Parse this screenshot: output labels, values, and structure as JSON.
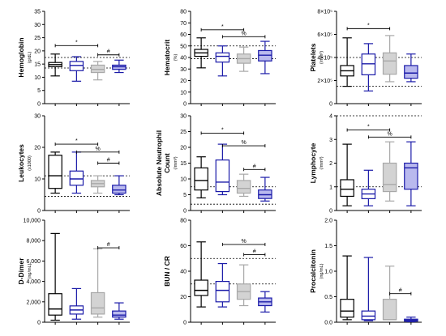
{
  "colors": {
    "black": "#000000",
    "blue": "#1a1aa8",
    "gray": "#a8a8a8",
    "gray_fill": "#d3d3d3",
    "blue_fill": "#b9b9ee",
    "white": "#ffffff"
  },
  "chart_data": [
    {
      "type": "boxplot",
      "ylabel": "Hemoglobin",
      "yunit": "(g/dL)",
      "ylim": [
        0,
        35
      ],
      "yticks": [
        0,
        5,
        10,
        15,
        20,
        25,
        30,
        35
      ],
      "ytick_labels": [
        "0",
        "5",
        "10",
        "15",
        "20",
        "25",
        "30",
        "35"
      ],
      "series": [
        {
          "color": "black",
          "fill": "white",
          "min": 10.5,
          "q1": 14.0,
          "median": 14.8,
          "q3": 15.6,
          "max": 18.8
        },
        {
          "color": "blue",
          "fill": "white",
          "min": 8.5,
          "q1": 12.5,
          "median": 14.5,
          "q3": 16.0,
          "max": 17.8
        },
        {
          "color": "gray",
          "fill": "gray_fill",
          "min": 9.0,
          "q1": 11.8,
          "median": 13.0,
          "q3": 14.6,
          "max": 16.0
        },
        {
          "color": "blue",
          "fill": "blue_fill",
          "min": 11.8,
          "q1": 13.0,
          "median": 14.0,
          "q3": 14.6,
          "max": 16.5
        }
      ],
      "reference_lines": [
        13.5,
        17.5
      ],
      "brackets": [
        {
          "from": 1,
          "to": 3,
          "y": 22.0,
          "label": "*"
        },
        {
          "from": 3,
          "to": 4,
          "y": 18.5,
          "label": "#"
        }
      ]
    },
    {
      "type": "boxplot",
      "ylabel": "Hematocrit",
      "yunit": "(%)",
      "ylim": [
        0,
        80
      ],
      "yticks": [
        0,
        10,
        20,
        30,
        40,
        50,
        60,
        70,
        80
      ],
      "ytick_labels": [
        "0",
        "10",
        "20",
        "30",
        "40",
        "50",
        "60",
        "70",
        "80"
      ],
      "series": [
        {
          "color": "black",
          "fill": "white",
          "min": 31,
          "q1": 41,
          "median": 44,
          "q3": 47,
          "max": 57
        },
        {
          "color": "blue",
          "fill": "white",
          "min": 24,
          "q1": 36,
          "median": 41,
          "q3": 44,
          "max": 50
        },
        {
          "color": "gray",
          "fill": "gray_fill",
          "min": 28,
          "q1": 35,
          "median": 39,
          "q3": 43,
          "max": 49
        },
        {
          "color": "blue",
          "fill": "blue_fill",
          "min": 26,
          "q1": 37,
          "median": 42,
          "q3": 46,
          "max": 54
        }
      ],
      "reference_lines": [
        39,
        50
      ],
      "brackets": [
        {
          "from": 1,
          "to": 3,
          "y": 64,
          "label": "*"
        },
        {
          "from": 2,
          "to": 4,
          "y": 58,
          "label": "%"
        }
      ]
    },
    {
      "type": "boxplot",
      "ylabel": "Platelets",
      "yunit": "(/mm³)",
      "ylim": [
        0,
        800000
      ],
      "yticks": [
        0,
        200000,
        400000,
        600000,
        800000
      ],
      "ytick_labels": [
        "0",
        "2×10⁵",
        "4×10⁵",
        "6×10⁵",
        "8×10⁵"
      ],
      "series": [
        {
          "color": "black",
          "fill": "white",
          "min": 150000,
          "q1": 240000,
          "median": 285000,
          "q3": 330000,
          "max": 570000
        },
        {
          "color": "blue",
          "fill": "white",
          "min": 110000,
          "q1": 250000,
          "median": 345000,
          "q3": 430000,
          "max": 520000
        },
        {
          "color": "gray",
          "fill": "gray_fill",
          "min": 190000,
          "q1": 255000,
          "median": 370000,
          "q3": 440000,
          "max": 590000
        },
        {
          "color": "blue",
          "fill": "blue_fill",
          "min": 190000,
          "q1": 220000,
          "median": 265000,
          "q3": 330000,
          "max": 430000
        }
      ],
      "reference_lines": [
        150000,
        400000
      ],
      "brackets": [
        {
          "from": 1,
          "to": 3,
          "y": 650000,
          "label": "*"
        }
      ]
    },
    {
      "type": "boxplot",
      "ylabel": "Leukocytes",
      "yunit": "(x1000)",
      "ylim": [
        0,
        30
      ],
      "yticks": [
        0,
        10,
        20,
        30
      ],
      "ytick_labels": [
        "0",
        "10",
        "20",
        "30"
      ],
      "series": [
        {
          "color": "black",
          "fill": "white",
          "min": 5.5,
          "q1": 7.0,
          "median": 11.0,
          "q3": 17.5,
          "max": 18.5
        },
        {
          "color": "blue",
          "fill": "white",
          "min": 5.5,
          "q1": 8.0,
          "median": 10.0,
          "q3": 12.5,
          "max": 18.5
        },
        {
          "color": "gray",
          "fill": "gray_fill",
          "min": 5.5,
          "q1": 7.5,
          "median": 8.5,
          "q3": 9.5,
          "max": 11.0
        },
        {
          "color": "blue",
          "fill": "blue_fill",
          "min": 5.0,
          "q1": 5.5,
          "median": 6.5,
          "q3": 8.0,
          "max": 11.0
        }
      ],
      "reference_lines": [
        4.5,
        11.0
      ],
      "brackets": [
        {
          "from": 1,
          "to": 3,
          "y": 21.0,
          "label": "*"
        },
        {
          "from": 2,
          "to": 4,
          "y": 18.5,
          "label": "%"
        },
        {
          "from": 3,
          "to": 4,
          "y": 15.0,
          "label": "#"
        }
      ]
    },
    {
      "type": "boxplot",
      "ylabel": "Absolute Neutrophil Count",
      "yunit": "(/mm³)",
      "ylim": [
        0,
        30
      ],
      "yticks": [
        0,
        5,
        10,
        15,
        20,
        25,
        30
      ],
      "ytick_labels": [
        "0",
        "5",
        "10",
        "15",
        "20",
        "25",
        "30"
      ],
      "series": [
        {
          "color": "black",
          "fill": "white",
          "min": 4.0,
          "q1": 6.5,
          "median": 9.5,
          "q3": 13.5,
          "max": 17.0
        },
        {
          "color": "blue",
          "fill": "white",
          "min": 5.0,
          "q1": 6.0,
          "median": 9.0,
          "q3": 16.0,
          "max": 21.0
        },
        {
          "color": "gray",
          "fill": "gray_fill",
          "min": 4.5,
          "q1": 5.5,
          "median": 7.0,
          "q3": 9.5,
          "max": 11.5
        },
        {
          "color": "blue",
          "fill": "blue_fill",
          "min": 3.0,
          "q1": 3.8,
          "median": 5.0,
          "q3": 6.5,
          "max": 10.5
        }
      ],
      "reference_lines": [
        2.0,
        7.5
      ],
      "brackets": [
        {
          "from": 1,
          "to": 3,
          "y": 24.5,
          "label": "*"
        },
        {
          "from": 2,
          "to": 4,
          "y": 20.5,
          "label": "%"
        },
        {
          "from": 3,
          "to": 4,
          "y": 13.0,
          "label": "#"
        }
      ]
    },
    {
      "type": "boxplot",
      "ylabel": "Lymphocyte",
      "yunit": "(/mm³)",
      "ylim": [
        0,
        4
      ],
      "yticks": [
        0,
        1,
        2,
        3,
        4
      ],
      "ytick_labels": [
        "0",
        "1",
        "2",
        "3",
        "4"
      ],
      "series": [
        {
          "color": "black",
          "fill": "white",
          "min": 0.2,
          "q1": 0.6,
          "median": 0.9,
          "q3": 1.3,
          "max": 2.8
        },
        {
          "color": "blue",
          "fill": "white",
          "min": 0.2,
          "q1": 0.5,
          "median": 0.7,
          "q3": 0.9,
          "max": 1.7
        },
        {
          "color": "gray",
          "fill": "gray_fill",
          "min": 0.4,
          "q1": 0.8,
          "median": 1.1,
          "q3": 2.0,
          "max": 2.9
        },
        {
          "color": "blue",
          "fill": "blue_fill",
          "min": 0.2,
          "q1": 0.9,
          "median": 1.8,
          "q3": 2.0,
          "max": 2.9
        }
      ],
      "reference_lines": [
        1.0,
        4.0
      ],
      "brackets": [
        {
          "from": 1,
          "to": 3,
          "y": 3.4,
          "label": "*"
        },
        {
          "from": 2,
          "to": 4,
          "y": 3.1,
          "label": "%"
        }
      ]
    },
    {
      "type": "boxplot",
      "ylabel": "D-Dimer",
      "yunit": "(ng/mL)",
      "ylim": [
        0,
        10000
      ],
      "yticks": [
        0,
        2000,
        4000,
        6000,
        8000,
        10000
      ],
      "ytick_labels": [
        "0",
        "2,000",
        "4,000",
        "6,000",
        "8,000",
        "10,000"
      ],
      "series": [
        {
          "color": "black",
          "fill": "white",
          "min": 200,
          "q1": 700,
          "median": 1300,
          "q3": 2800,
          "max": 8700
        },
        {
          "color": "blue",
          "fill": "white",
          "min": 300,
          "q1": 800,
          "median": 1200,
          "q3": 1600,
          "max": 3300
        },
        {
          "color": "gray",
          "fill": "gray_fill",
          "min": 500,
          "q1": 800,
          "median": 1400,
          "q3": 2900,
          "max": 7200
        },
        {
          "color": "blue",
          "fill": "blue_fill",
          "min": 300,
          "q1": 500,
          "median": 700,
          "q3": 1100,
          "max": 1900
        }
      ],
      "reference_lines": [],
      "brackets": [
        {
          "from": 3,
          "to": 4,
          "y": 7300,
          "label": "#"
        }
      ]
    },
    {
      "type": "boxplot",
      "ylabel": "BUN / CR",
      "yunit": "",
      "ylim": [
        0,
        80
      ],
      "yticks": [
        0,
        20,
        40,
        60,
        80
      ],
      "ytick_labels": [
        "0",
        "20",
        "40",
        "60",
        "80"
      ],
      "series": [
        {
          "color": "black",
          "fill": "white",
          "min": 12,
          "q1": 21,
          "median": 25,
          "q3": 33,
          "max": 63
        },
        {
          "color": "blue",
          "fill": "white",
          "min": 12,
          "q1": 16,
          "median": 25,
          "q3": 32,
          "max": 46
        },
        {
          "color": "gray",
          "fill": "gray_fill",
          "min": 13,
          "q1": 18,
          "median": 24,
          "q3": 30,
          "max": 45
        },
        {
          "color": "blue",
          "fill": "blue_fill",
          "min": 8,
          "q1": 13,
          "median": 16,
          "q3": 19,
          "max": 24
        }
      ],
      "reference_lines": [
        30,
        50
      ],
      "brackets": [
        {
          "from": 2,
          "to": 4,
          "y": 61,
          "label": "%"
        },
        {
          "from": 3,
          "to": 4,
          "y": 53,
          "label": "#"
        }
      ]
    },
    {
      "type": "boxplot",
      "ylabel": "Procalcitonin",
      "yunit": "(ng/mL)",
      "ylim": [
        0,
        2.0
      ],
      "yticks": [
        0,
        0.5,
        1.0,
        1.5,
        2.0
      ],
      "ytick_labels": [
        "0.0",
        "0.5",
        "1.0",
        "1.5",
        "2.0"
      ],
      "series": [
        {
          "color": "black",
          "fill": "white",
          "min": 0.05,
          "q1": 0.1,
          "median": 0.22,
          "q3": 0.45,
          "max": 1.3
        },
        {
          "color": "blue",
          "fill": "white",
          "min": 0.03,
          "q1": 0.05,
          "median": 0.12,
          "q3": 0.22,
          "max": 1.27
        },
        {
          "color": "gray",
          "fill": "gray_fill",
          "min": 0.05,
          "q1": 0.05,
          "median": 0.05,
          "q3": 0.45,
          "max": 1.1
        },
        {
          "color": "blue",
          "fill": "blue_fill",
          "min": 0.01,
          "q1": 0.02,
          "median": 0.04,
          "q3": 0.06,
          "max": 0.1
        }
      ],
      "reference_lines": [],
      "brackets": [
        {
          "from": 3,
          "to": 4,
          "y": 0.56,
          "label": "#"
        }
      ]
    }
  ]
}
